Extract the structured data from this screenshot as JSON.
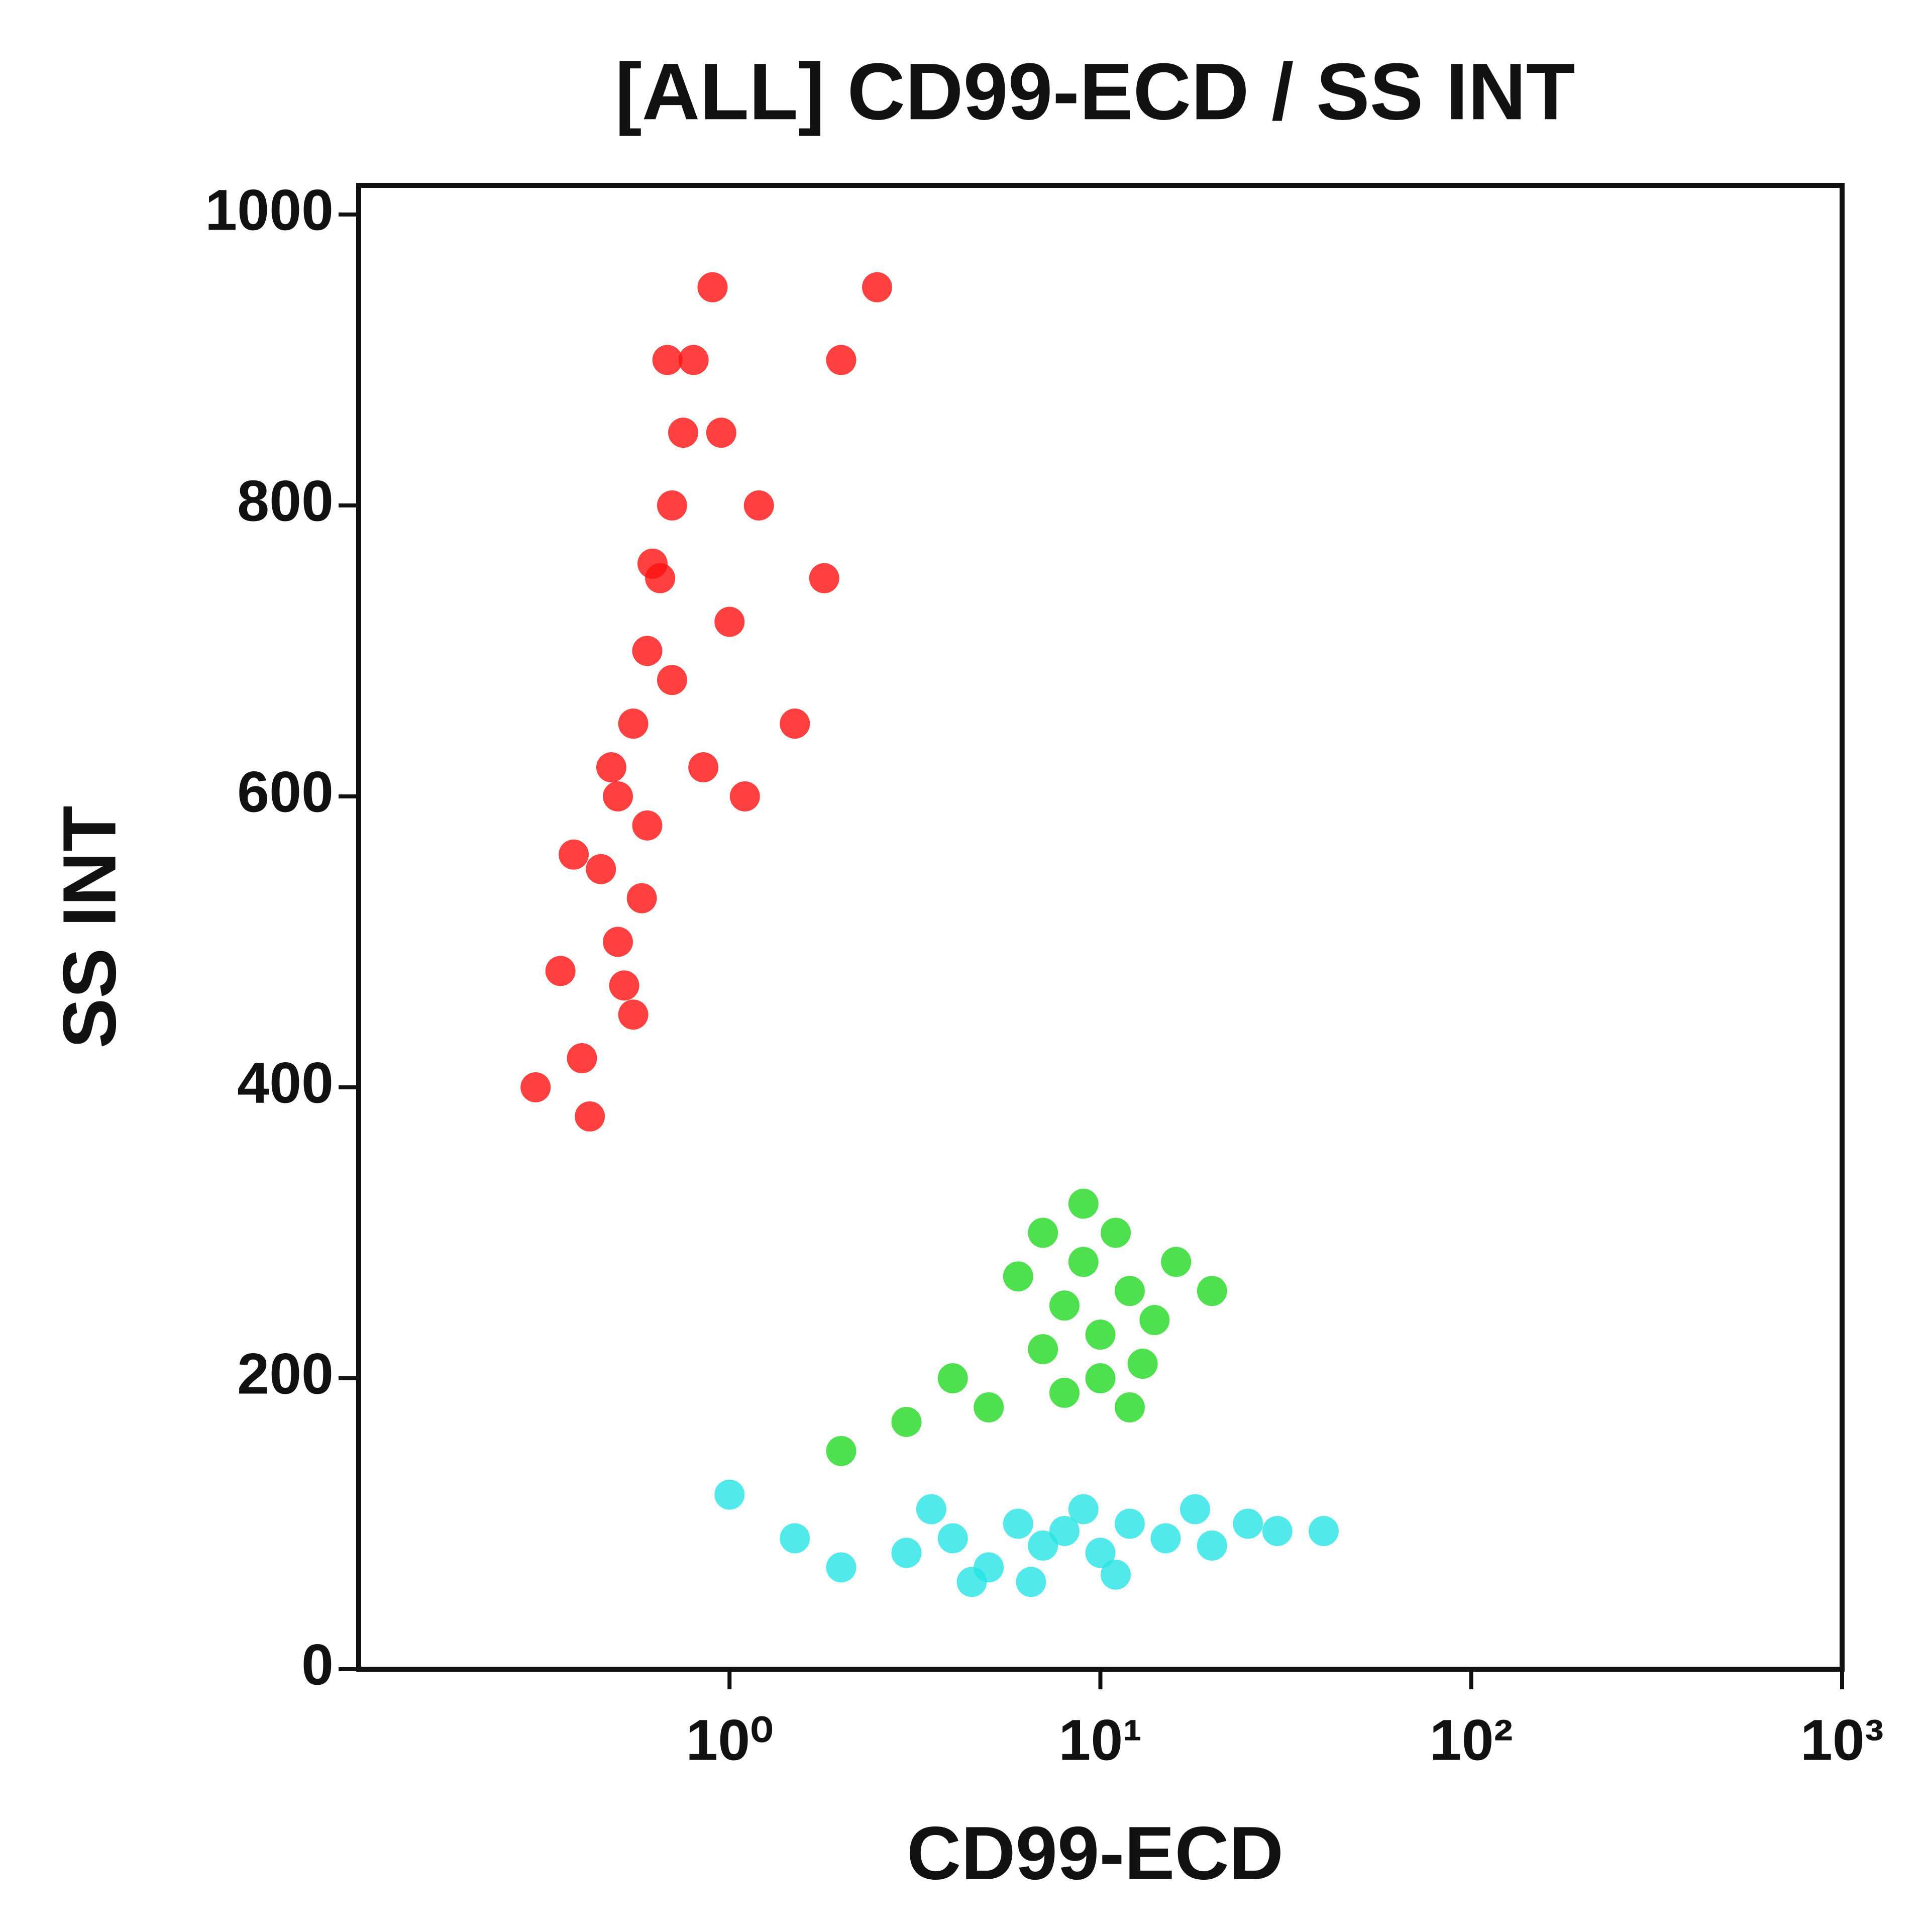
{
  "chart_data": {
    "type": "scatter",
    "title": "[ALL] CD99-ECD / SS INT",
    "x_label": "CD99-ECD",
    "y_label": "SS INT",
    "x_scale": "log",
    "xlim": [
      0.1,
      1000
    ],
    "xticks": [
      {
        "value": 1,
        "label": "10⁰"
      },
      {
        "value": 10,
        "label": "10¹"
      },
      {
        "value": 100,
        "label": "10²"
      },
      {
        "value": 1000,
        "label": "10³"
      }
    ],
    "ylim": [
      0,
      1020
    ],
    "yticks": [
      0,
      200,
      400,
      600,
      800,
      1000
    ],
    "series": [
      {
        "color": "#ff1010",
        "x": [
          0.5,
          0.55,
          0.6,
          0.45,
          0.5,
          0.65,
          0.7,
          0.55,
          0.4,
          0.75,
          0.8,
          0.9,
          0.6,
          0.48,
          0.35,
          0.7,
          1.0,
          1.2,
          0.85,
          0.3,
          0.42,
          1.5,
          2.0,
          2.5,
          1.8,
          0.58,
          0.52,
          0.62,
          1.1,
          0.38,
          0.95,
          0.68
        ],
        "y": [
          600,
          650,
          700,
          550,
          500,
          750,
          800,
          450,
          420,
          850,
          900,
          950,
          580,
          620,
          480,
          680,
          720,
          800,
          620,
          400,
          380,
          650,
          900,
          950,
          750,
          530,
          470,
          760,
          600,
          560,
          850,
          900
        ]
      },
      {
        "color": "#22d822",
        "x": [
          8,
          10,
          12,
          9,
          7,
          11,
          14,
          6,
          13,
          10,
          5,
          3,
          2,
          16,
          20,
          9,
          8,
          4,
          12,
          7
        ],
        "y": [
          250,
          230,
          260,
          280,
          220,
          300,
          240,
          270,
          210,
          200,
          180,
          170,
          150,
          280,
          260,
          320,
          190,
          200,
          180,
          300
        ]
      },
      {
        "color": "#25e3e3",
        "x": [
          3,
          4,
          5,
          6,
          7,
          8,
          10,
          12,
          15,
          20,
          25,
          30,
          2,
          1.5,
          4.5,
          9,
          11,
          18,
          40,
          1,
          3.5,
          6.5
        ],
        "y": [
          80,
          90,
          70,
          100,
          85,
          95,
          80,
          100,
          90,
          85,
          100,
          95,
          70,
          90,
          60,
          110,
          65,
          110,
          95,
          120,
          110,
          60
        ]
      }
    ]
  }
}
